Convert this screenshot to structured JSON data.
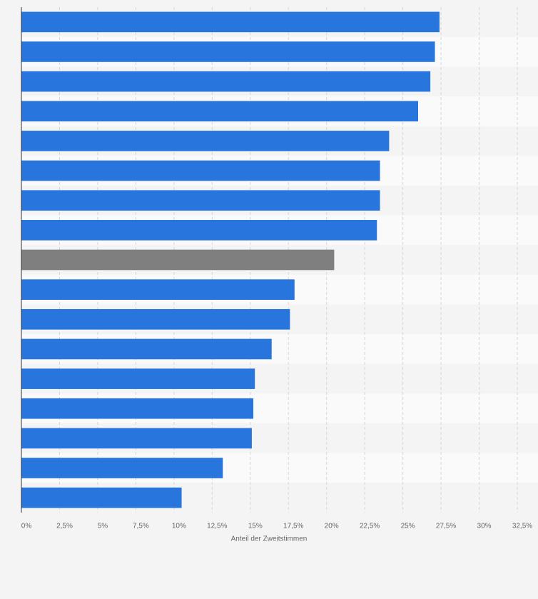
{
  "chart_data": {
    "type": "hbar",
    "categories": [
      null,
      null,
      null,
      null,
      null,
      null,
      null,
      null,
      null,
      null,
      null,
      null,
      null,
      null,
      null,
      null,
      null
    ],
    "values": [
      27.4,
      27.1,
      26.8,
      26.0,
      24.1,
      23.5,
      23.5,
      23.3,
      20.5,
      17.9,
      17.6,
      16.4,
      15.3,
      15.2,
      15.1,
      13.2,
      10.5
    ],
    "colors": [
      "#2876dd",
      "#2876dd",
      "#2876dd",
      "#2876dd",
      "#2876dd",
      "#2876dd",
      "#2876dd",
      "#2876dd",
      "#7f7f7f",
      "#2876dd",
      "#2876dd",
      "#2876dd",
      "#2876dd",
      "#2876dd",
      "#2876dd",
      "#2876dd",
      "#2876dd"
    ],
    "xlabel": "Anteil der Zweitstimmen",
    "xlim": [
      0,
      32.5
    ],
    "xticks": [
      {
        "value": 0,
        "label": "0%"
      },
      {
        "value": 2.5,
        "label": "2,5%"
      },
      {
        "value": 5,
        "label": "5%"
      },
      {
        "value": 7.5,
        "label": "7,5%"
      },
      {
        "value": 10,
        "label": "10%"
      },
      {
        "value": 12.5,
        "label": "12,5%"
      },
      {
        "value": 15,
        "label": "15%"
      },
      {
        "value": 17.5,
        "label": "17,5%"
      },
      {
        "value": 20,
        "label": "20%"
      },
      {
        "value": 22.5,
        "label": "22,5%"
      },
      {
        "value": 25,
        "label": "25%"
      },
      {
        "value": 27.5,
        "label": "27,5%"
      },
      {
        "value": 30,
        "label": "30%"
      },
      {
        "value": 32.5,
        "label": "32,5%"
      }
    ],
    "grid": true
  }
}
